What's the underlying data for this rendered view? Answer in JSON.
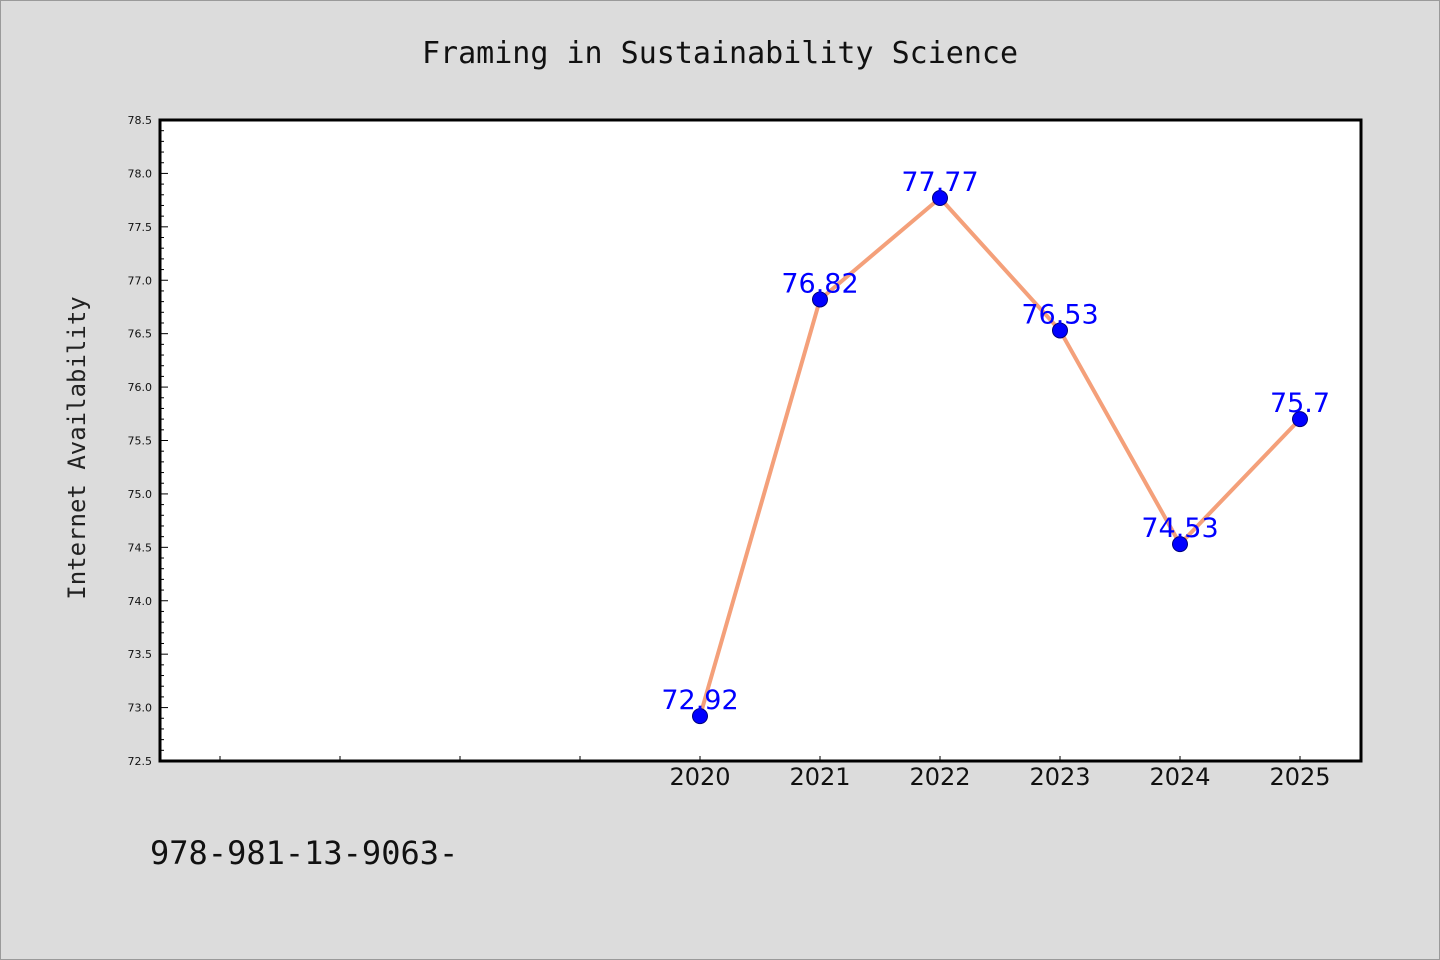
{
  "chart_data": {
    "type": "line",
    "title": "Framing in Sustainability Science",
    "xlabel": "",
    "ylabel": "Internet Availability",
    "x": [
      "2020",
      "2021",
      "2022",
      "2023",
      "2024",
      "2025"
    ],
    "series": [
      {
        "name": "",
        "values": [
          72.92,
          76.82,
          77.77,
          76.53,
          74.53,
          75.7
        ]
      }
    ],
    "data_labels": [
      "72.92",
      "76.82",
      "77.77",
      "76.53",
      "74.53",
      "75.7"
    ],
    "ylim": [
      72.5,
      78.5
    ],
    "yticks": [
      "72.5",
      "73.0",
      "73.5",
      "74.0",
      "74.5",
      "75.0",
      "75.5",
      "76.0",
      "76.5",
      "77.0",
      "77.5",
      "78.0",
      "78.5"
    ],
    "grid": false,
    "colors": {
      "line": "#f4a07a",
      "marker": "#0000ff",
      "label": "#0000ff",
      "background": "#dcdcdc",
      "plot_bg": "#ffffff"
    }
  },
  "footer_text": "978-981-13-9063-"
}
